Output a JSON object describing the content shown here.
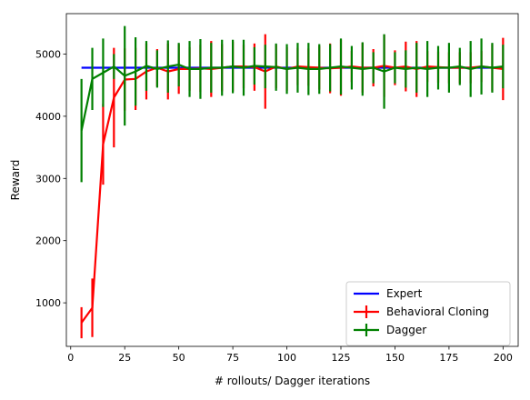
{
  "chart_data": {
    "type": "line",
    "title": "",
    "xlabel": "# rollouts/ Dagger iterations",
    "ylabel": "Reward",
    "xlim": [
      -2,
      207
    ],
    "ylim": [
      300,
      5650
    ],
    "xticks": [
      0,
      25,
      50,
      75,
      100,
      125,
      150,
      175,
      200
    ],
    "yticks": [
      1000,
      2000,
      3000,
      4000,
      5000
    ],
    "grid": false,
    "legend_position": "lower right",
    "x": [
      5,
      10,
      15,
      20,
      25,
      30,
      35,
      40,
      45,
      50,
      55,
      60,
      65,
      70,
      75,
      80,
      85,
      90,
      95,
      100,
      105,
      110,
      115,
      120,
      125,
      130,
      135,
      140,
      145,
      150,
      155,
      160,
      165,
      170,
      175,
      180,
      185,
      190,
      195,
      200
    ],
    "series": [
      {
        "name": "Expert",
        "color": "#0000ff",
        "values": [
          4780,
          4780,
          4780,
          4780,
          4780,
          4780,
          4780,
          4780,
          4780,
          4780,
          4780,
          4780,
          4780,
          4780,
          4780,
          4780,
          4780,
          4780,
          4780,
          4780,
          4780,
          4780,
          4780,
          4780,
          4780,
          4780,
          4780,
          4780,
          4780,
          4780,
          4780,
          4780,
          4780,
          4780,
          4780,
          4780,
          4780,
          4780,
          4780,
          4780
        ],
        "errors": []
      },
      {
        "name": "Behavioral Cloning",
        "color": "#ff0000",
        "values": [
          680,
          920,
          3550,
          4300,
          4590,
          4600,
          4720,
          4780,
          4720,
          4760,
          4760,
          4770,
          4760,
          4780,
          4800,
          4800,
          4790,
          4720,
          4800,
          4760,
          4800,
          4790,
          4780,
          4770,
          4780,
          4800,
          4780,
          4780,
          4810,
          4780,
          4800,
          4760,
          4800,
          4790,
          4780,
          4780,
          4780,
          4800,
          4780,
          4760
        ],
        "errors": [
          250,
          470,
          650,
          800,
          500,
          500,
          450,
          300,
          450,
          400,
          350,
          380,
          450,
          380,
          400,
          350,
          380,
          600,
          350,
          350,
          300,
          300,
          350,
          400,
          450,
          250,
          400,
          300,
          500,
          280,
          400,
          450,
          250,
          250,
          250,
          250,
          250,
          250,
          380,
          500
        ]
      },
      {
        "name": "Dagger",
        "color": "#008000",
        "values": [
          3770,
          4600,
          4700,
          4800,
          4650,
          4720,
          4810,
          4760,
          4800,
          4830,
          4760,
          4760,
          4780,
          4780,
          4800,
          4780,
          4810,
          4800,
          4790,
          4760,
          4780,
          4760,
          4760,
          4780,
          4800,
          4780,
          4760,
          4780,
          4720,
          4780,
          4760,
          4780,
          4760,
          4780,
          4780,
          4800,
          4760,
          4800,
          4780,
          4800
        ],
        "errors": [
          830,
          500,
          550,
          200,
          800,
          550,
          400,
          300,
          420,
          350,
          450,
          480,
          400,
          450,
          430,
          450,
          300,
          350,
          380,
          400,
          400,
          420,
          400,
          380,
          450,
          350,
          430,
          250,
          600,
          250,
          300,
          400,
          450,
          350,
          400,
          300,
          450,
          450,
          400,
          350
        ]
      }
    ]
  }
}
